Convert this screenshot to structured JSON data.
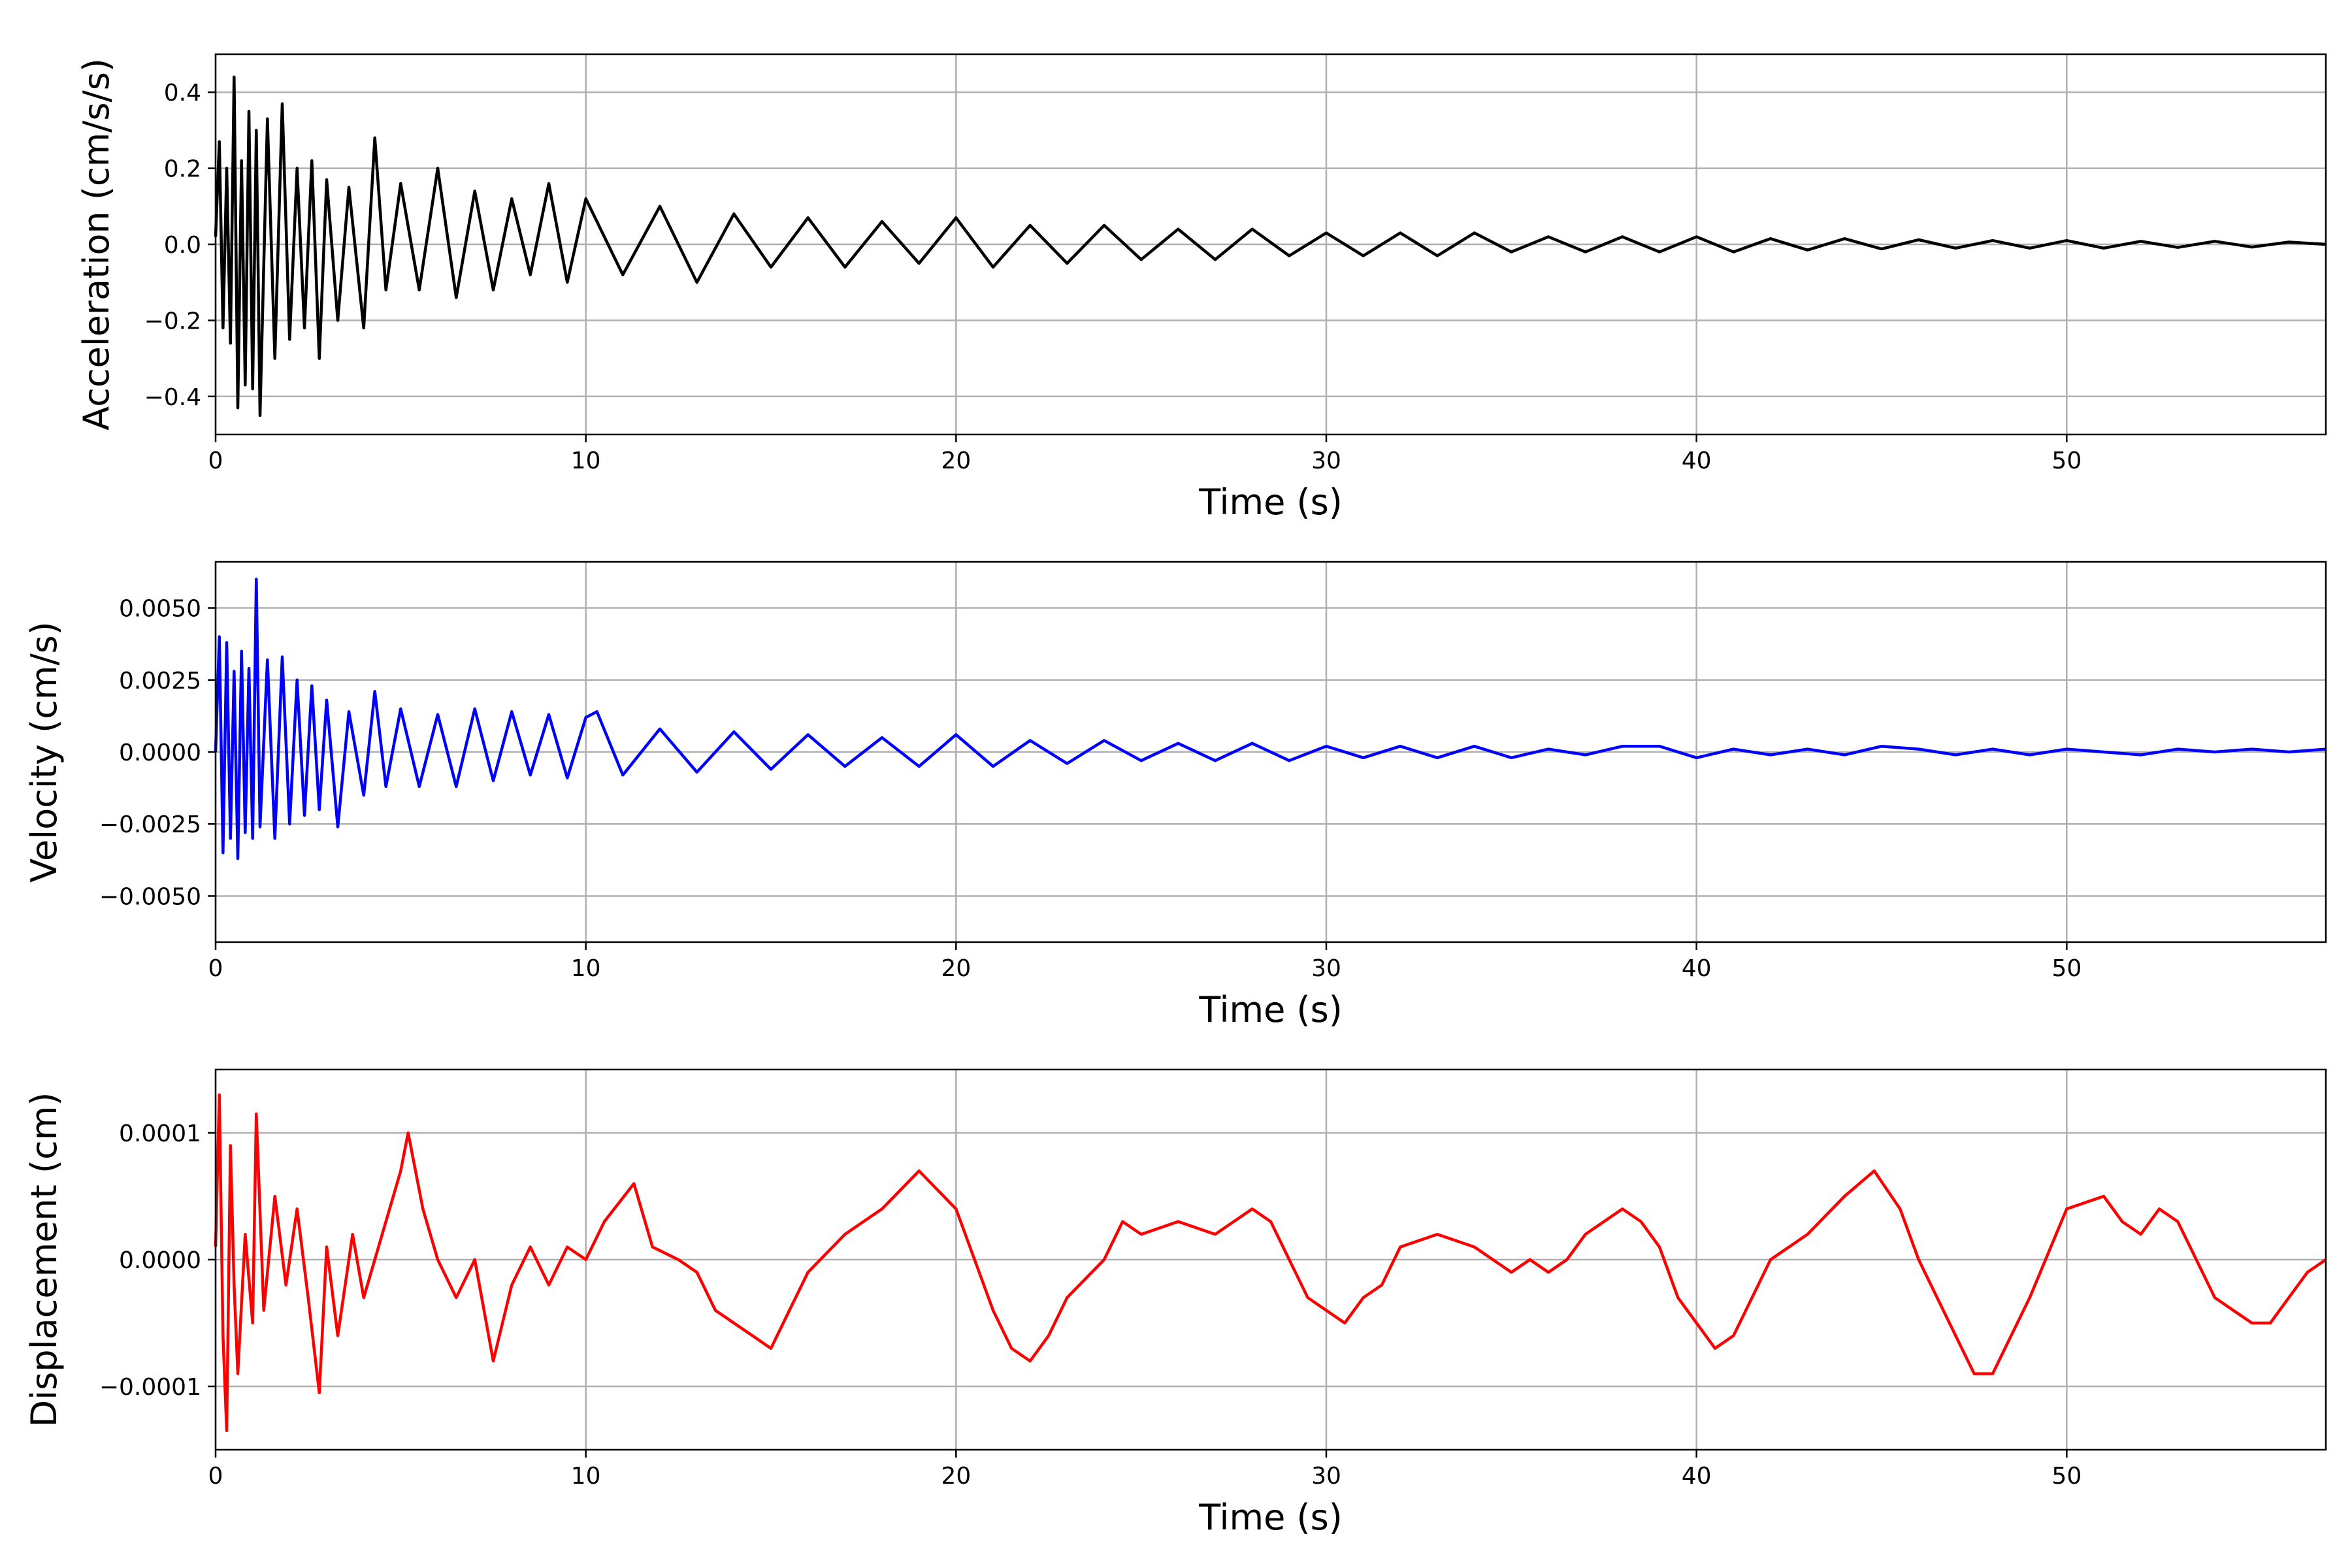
{
  "figure": {
    "background": "#ffffff",
    "grid_color": "#b0b0b0"
  },
  "chart_data": [
    {
      "type": "line",
      "title": "",
      "xlabel": "Time (s)",
      "ylabel": "Acceleration (cm/s/s)",
      "xlim": [
        0,
        57
      ],
      "ylim": [
        -0.5,
        0.5
      ],
      "grid": true,
      "x_ticks": [
        0,
        10,
        20,
        30,
        40,
        50
      ],
      "x_tick_labels": [
        "0",
        "10",
        "20",
        "30",
        "40",
        "50"
      ],
      "y_ticks": [
        0.4,
        0.2,
        0.0,
        -0.2,
        -0.4
      ],
      "y_tick_labels": [
        "0.4",
        "0.2",
        "0.0",
        "−0.2",
        "−0.4"
      ],
      "series": [
        {
          "color": "#000000",
          "x": [
            0,
            0.1,
            0.2,
            0.3,
            0.4,
            0.5,
            0.6,
            0.7,
            0.8,
            0.9,
            1.0,
            1.1,
            1.2,
            1.4,
            1.6,
            1.8,
            2.0,
            2.2,
            2.4,
            2.6,
            2.8,
            3.0,
            3.3,
            3.6,
            4.0,
            4.3,
            4.6,
            5.0,
            5.5,
            6.0,
            6.5,
            7.0,
            7.5,
            8.0,
            8.5,
            9.0,
            9.5,
            10,
            11,
            12,
            13,
            14,
            15,
            16,
            17,
            18,
            19,
            20,
            21,
            22,
            23,
            24,
            25,
            26,
            27,
            28,
            29,
            30,
            31,
            32,
            33,
            34,
            35,
            36,
            37,
            38,
            39,
            40,
            41,
            42,
            43,
            44,
            45,
            46,
            47,
            48,
            49,
            50,
            51,
            52,
            53,
            54,
            55,
            56,
            57
          ],
          "y": [
            0.02,
            0.27,
            -0.22,
            0.2,
            -0.26,
            0.44,
            -0.43,
            0.22,
            -0.37,
            0.35,
            -0.38,
            0.3,
            -0.45,
            0.33,
            -0.3,
            0.37,
            -0.25,
            0.2,
            -0.22,
            0.22,
            -0.3,
            0.17,
            -0.2,
            0.15,
            -0.22,
            0.28,
            -0.12,
            0.16,
            -0.12,
            0.2,
            -0.14,
            0.14,
            -0.12,
            0.12,
            -0.08,
            0.16,
            -0.1,
            0.12,
            -0.08,
            0.1,
            -0.1,
            0.08,
            -0.06,
            0.07,
            -0.06,
            0.06,
            -0.05,
            0.07,
            -0.06,
            0.05,
            -0.05,
            0.05,
            -0.04,
            0.04,
            -0.04,
            0.04,
            -0.03,
            0.03,
            -0.03,
            0.03,
            -0.03,
            0.03,
            -0.02,
            0.02,
            -0.02,
            0.02,
            -0.02,
            0.02,
            -0.02,
            0.015,
            -0.015,
            0.015,
            -0.012,
            0.012,
            -0.01,
            0.01,
            -0.01,
            0.01,
            -0.01,
            0.008,
            -0.008,
            0.008,
            -0.007,
            0.006,
            0.0
          ]
        }
      ]
    },
    {
      "type": "line",
      "title": "",
      "xlabel": "Time (s)",
      "ylabel": "Velocity (cm/s)",
      "xlim": [
        0,
        57
      ],
      "ylim": [
        -0.0066,
        0.0066
      ],
      "grid": true,
      "x_ticks": [
        0,
        10,
        20,
        30,
        40,
        50
      ],
      "x_tick_labels": [
        "0",
        "10",
        "20",
        "30",
        "40",
        "50"
      ],
      "y_ticks": [
        0.005,
        0.0025,
        0.0,
        -0.0025,
        -0.005
      ],
      "y_tick_labels": [
        "0.0050",
        "0.0025",
        "0.0000",
        "−0.0025",
        "−0.0050"
      ],
      "series": [
        {
          "color": "#0000ff",
          "x": [
            0,
            0.1,
            0.2,
            0.3,
            0.4,
            0.5,
            0.6,
            0.7,
            0.8,
            0.9,
            1.0,
            1.1,
            1.2,
            1.4,
            1.6,
            1.8,
            2.0,
            2.2,
            2.4,
            2.6,
            2.8,
            3.0,
            3.3,
            3.6,
            4.0,
            4.3,
            4.6,
            5.0,
            5.5,
            6.0,
            6.5,
            7.0,
            7.5,
            8.0,
            8.5,
            9.0,
            9.5,
            10,
            10.3,
            11,
            12,
            13,
            14,
            15,
            16,
            17,
            18,
            19,
            20,
            21,
            22,
            23,
            24,
            25,
            26,
            27,
            28,
            29,
            30,
            31,
            32,
            33,
            34,
            35,
            36,
            37,
            38,
            39,
            40,
            41,
            42,
            43,
            44,
            45,
            46,
            47,
            48,
            49,
            50,
            51,
            52,
            53,
            54,
            55,
            56,
            57
          ],
          "y": [
            0.0,
            0.004,
            -0.0035,
            0.0038,
            -0.003,
            0.0028,
            -0.0037,
            0.0035,
            -0.0028,
            0.0029,
            -0.003,
            0.006,
            -0.0026,
            0.0032,
            -0.003,
            0.0033,
            -0.0025,
            0.0025,
            -0.0022,
            0.0023,
            -0.002,
            0.0018,
            -0.0026,
            0.0014,
            -0.0015,
            0.0021,
            -0.0012,
            0.0015,
            -0.0012,
            0.0013,
            -0.0012,
            0.0015,
            -0.001,
            0.0014,
            -0.0008,
            0.0013,
            -0.0009,
            0.0012,
            0.0014,
            -0.0008,
            0.0008,
            -0.0007,
            0.0007,
            -0.0006,
            0.0006,
            -0.0005,
            0.0005,
            -0.0005,
            0.0006,
            -0.0005,
            0.0004,
            -0.0004,
            0.0004,
            -0.0003,
            0.0003,
            -0.0003,
            0.0003,
            -0.0003,
            0.0002,
            -0.0002,
            0.0002,
            -0.0002,
            0.0002,
            -0.0002,
            0.0001,
            -0.0001,
            0.0002,
            0.0002,
            -0.0002,
            0.0001,
            -0.0001,
            0.0001,
            -0.0001,
            0.0002,
            0.0001,
            -0.0001,
            0.0001,
            -0.0001,
            0.0001,
            0.0,
            -0.0001,
            0.0001,
            0.0,
            0.0001,
            0.0,
            0.0001
          ]
        }
      ]
    },
    {
      "type": "line",
      "title": "",
      "xlabel": "Time (s)",
      "ylabel": "Displacement (cm)",
      "xlim": [
        0,
        57
      ],
      "ylim": [
        -0.00015,
        0.00015
      ],
      "grid": true,
      "x_ticks": [
        0,
        10,
        20,
        30,
        40,
        50
      ],
      "x_tick_labels": [
        "0",
        "10",
        "20",
        "30",
        "40",
        "50"
      ],
      "y_ticks": [
        0.0001,
        0.0,
        -0.0001
      ],
      "y_tick_labels": [
        "0.0001",
        "0.0000",
        "−0.0001"
      ],
      "series": [
        {
          "color": "#ff0000",
          "x": [
            0,
            0.1,
            0.2,
            0.3,
            0.4,
            0.5,
            0.6,
            0.8,
            1.0,
            1.1,
            1.3,
            1.6,
            1.9,
            2.2,
            2.5,
            2.8,
            3.0,
            3.3,
            3.7,
            4.0,
            4.5,
            5.0,
            5.2,
            5.6,
            6.0,
            6.5,
            7.0,
            7.5,
            8.0,
            8.5,
            9.0,
            9.5,
            10.0,
            10.5,
            11.3,
            11.8,
            12.5,
            13.0,
            13.5,
            14.0,
            14.5,
            15.0,
            15.5,
            16.0,
            17.0,
            18.0,
            19.0,
            20.0,
            20.5,
            21.0,
            21.5,
            22.0,
            22.5,
            23.0,
            24.0,
            24.5,
            25.0,
            26.0,
            27.0,
            28.0,
            28.5,
            29.0,
            29.5,
            30.0,
            30.5,
            31.0,
            31.5,
            32.0,
            33.0,
            34.0,
            35.0,
            35.5,
            36.0,
            36.5,
            37.0,
            38.0,
            38.5,
            39.0,
            39.5,
            40.0,
            40.5,
            41.0,
            41.5,
            42.0,
            43.0,
            44.0,
            44.8,
            45.5,
            46.0,
            47.0,
            47.5,
            48.0,
            48.5,
            49.0,
            50.0,
            51.0,
            51.5,
            52.0,
            52.5,
            53.0,
            53.5,
            54.0,
            54.5,
            55.0,
            55.5,
            56.0,
            56.5,
            57.0
          ],
          "y": [
            1e-05,
            0.00013,
            -6e-05,
            -0.000135,
            9e-05,
            -2e-05,
            -9e-05,
            2e-05,
            -5e-05,
            0.000115,
            -4e-05,
            5e-05,
            -2e-05,
            4e-05,
            -3e-05,
            -0.000105,
            1e-05,
            -6e-05,
            2e-05,
            -3e-05,
            2e-05,
            7e-05,
            0.0001,
            4e-05,
            0.0,
            -3e-05,
            0.0,
            -8e-05,
            -2e-05,
            1e-05,
            -2e-05,
            1e-05,
            0.0,
            3e-05,
            6e-05,
            1e-05,
            0.0,
            -1e-05,
            -4e-05,
            -5e-05,
            -6e-05,
            -7e-05,
            -4e-05,
            -1e-05,
            2e-05,
            4e-05,
            7e-05,
            4e-05,
            0.0,
            -4e-05,
            -7e-05,
            -8e-05,
            -6e-05,
            -3e-05,
            0.0,
            3e-05,
            2e-05,
            3e-05,
            2e-05,
            4e-05,
            3e-05,
            0.0,
            -3e-05,
            -4e-05,
            -5e-05,
            -3e-05,
            -2e-05,
            1e-05,
            2e-05,
            1e-05,
            -1e-05,
            0.0,
            -1e-05,
            0.0,
            2e-05,
            4e-05,
            3e-05,
            1e-05,
            -3e-05,
            -5e-05,
            -7e-05,
            -6e-05,
            -3e-05,
            0.0,
            2e-05,
            5e-05,
            7e-05,
            4e-05,
            0.0,
            -6e-05,
            -9e-05,
            -9e-05,
            -6e-05,
            -3e-05,
            4e-05,
            5e-05,
            3e-05,
            2e-05,
            4e-05,
            3e-05,
            0.0,
            -3e-05,
            -4e-05,
            -5e-05,
            -5e-05,
            -3e-05,
            -1e-05,
            0.0
          ]
        }
      ]
    }
  ]
}
